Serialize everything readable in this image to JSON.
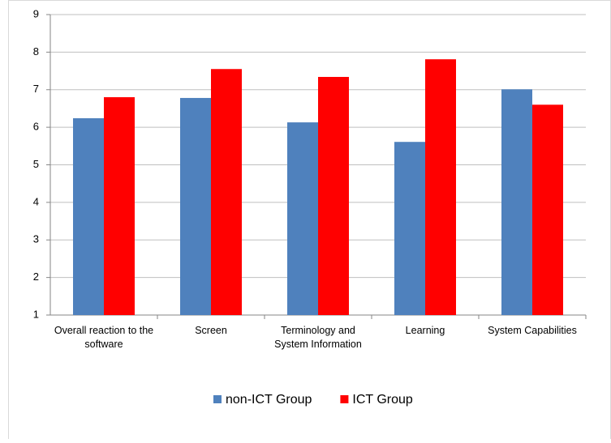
{
  "chart_data": {
    "type": "bar",
    "categories": [
      "Overall reaction to the software",
      "Screen",
      "Terminology and System Information",
      "Learning",
      "System Capabilities"
    ],
    "series": [
      {
        "name": "non-ICT Group",
        "color": "#4f81bd",
        "values": [
          6.24,
          6.78,
          6.13,
          5.61,
          7.01
        ]
      },
      {
        "name": "ICT Group",
        "color": "#ff0000",
        "values": [
          6.8,
          7.55,
          7.34,
          7.81,
          6.6
        ]
      }
    ],
    "ylim": [
      1,
      9
    ],
    "yticks": [
      1,
      2,
      3,
      4,
      5,
      6,
      7,
      8,
      9
    ],
    "grid": true,
    "legend": "bottom"
  }
}
